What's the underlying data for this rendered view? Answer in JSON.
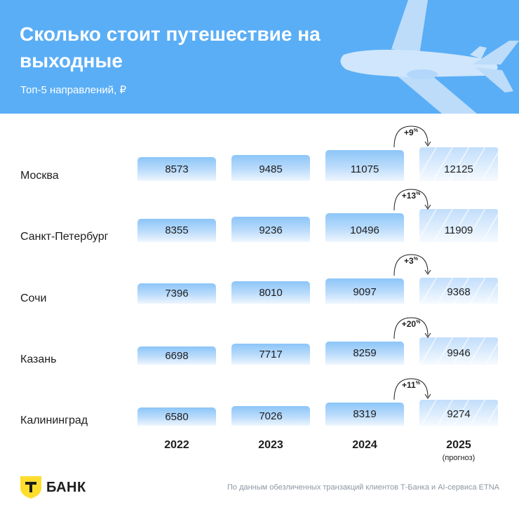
{
  "header": {
    "title": "Сколько стоит путешествие на выходные",
    "subtitle": "Топ-5 направлений, ₽"
  },
  "chart_data": {
    "type": "bar",
    "title": "Сколько стоит путешествие на выходные",
    "subtitle": "Топ-5 направлений, ₽",
    "years": [
      "2022",
      "2023",
      "2024",
      "2025"
    ],
    "forecast_note": "(прогноз)",
    "rows": [
      {
        "city": "Москва",
        "values": [
          8573,
          9485,
          11075,
          12125
        ],
        "growth": "+9",
        "growth_unit": "%"
      },
      {
        "city": "Санкт-Петербург",
        "values": [
          8355,
          9236,
          10496,
          11909
        ],
        "growth": "+13",
        "growth_unit": "%"
      },
      {
        "city": "Сочи",
        "values": [
          7396,
          8010,
          9097,
          9368
        ],
        "growth": "+3",
        "growth_unit": "%"
      },
      {
        "city": "Казань",
        "values": [
          6698,
          7717,
          8259,
          9946
        ],
        "growth": "+20",
        "growth_unit": "%"
      },
      {
        "city": "Калининград",
        "values": [
          6580,
          7026,
          8319,
          9274
        ],
        "growth": "+11",
        "growth_unit": "%"
      }
    ]
  },
  "footer": {
    "brand": "БАНК",
    "brand_mark": "Т",
    "source": "По данным обезличенных транзакций клиентов Т-Банка и AI-сервиса ETNA"
  },
  "colors": {
    "header_bg": "#5aaef6",
    "bar_top": "#8cc5f8",
    "logo_yellow": "#ffdd2d"
  }
}
